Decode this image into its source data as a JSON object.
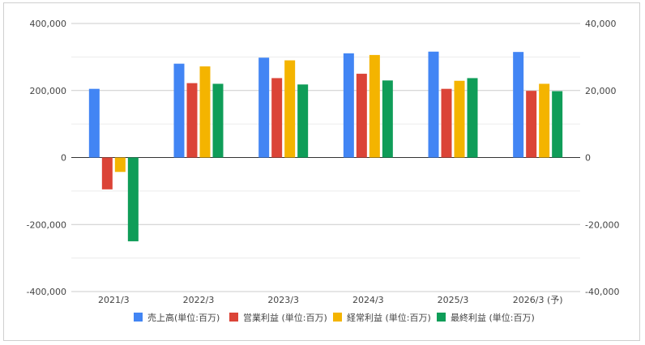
{
  "chart_data": {
    "type": "bar",
    "categories": [
      "2021/3",
      "2022/3",
      "2023/3",
      "2024/3",
      "2025/3",
      "2026/3 (予)"
    ],
    "series": [
      {
        "name": "売上高(単位:百万)",
        "color": "#4285f4",
        "axis": "left",
        "values": [
          205000,
          280000,
          298000,
          311000,
          316000,
          315000
        ]
      },
      {
        "name": "営業利益 (単位:百万)",
        "color": "#db4437",
        "axis": "right",
        "values": [
          -9500,
          22200,
          23700,
          25000,
          20500,
          19900
        ]
      },
      {
        "name": "経常利益 (単位:百万)",
        "color": "#f4b400",
        "axis": "right",
        "values": [
          -4300,
          27200,
          29000,
          30600,
          22900,
          22000
        ]
      },
      {
        "name": "最終利益 (単位:百万)",
        "color": "#0f9d58",
        "axis": "right",
        "values": [
          -25000,
          22000,
          21800,
          23000,
          23700,
          19800
        ]
      }
    ],
    "y_left": {
      "min": -400000,
      "max": 400000,
      "ticks": [
        "400,000",
        "200,000",
        "0",
        "-200,000",
        "-400,000"
      ]
    },
    "y_right": {
      "min": -40000,
      "max": 40000,
      "ticks": [
        "40,000",
        "20,000",
        "0",
        "-20,000",
        "-40,000"
      ]
    },
    "grid": true,
    "legend_position": "bottom",
    "title": "",
    "xlabel": "",
    "ylabel": ""
  }
}
